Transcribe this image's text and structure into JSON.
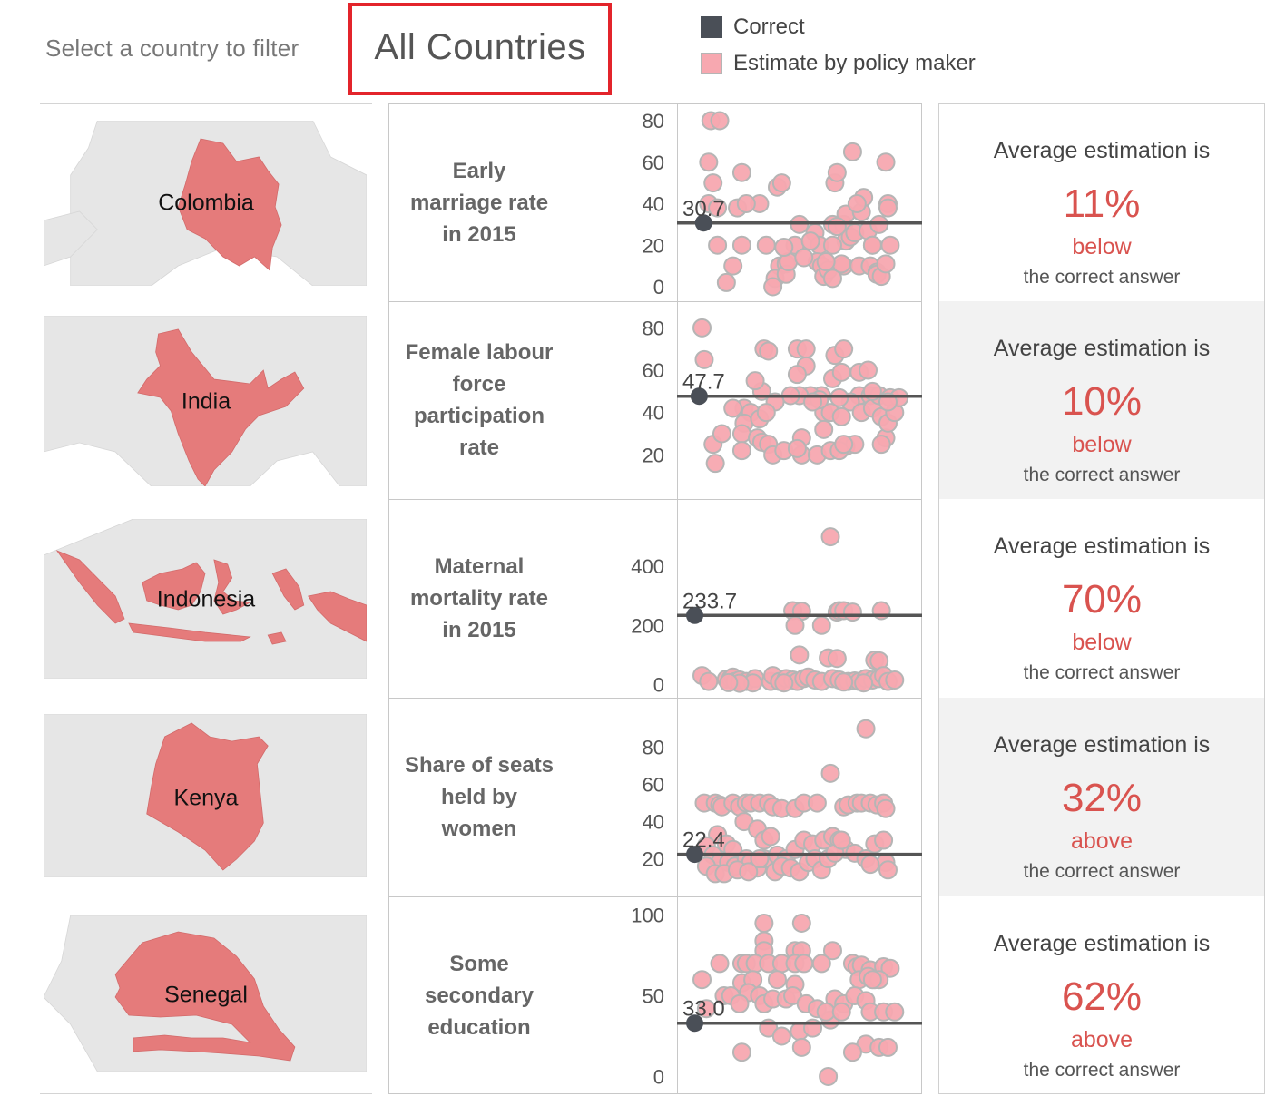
{
  "filter": {
    "label": "Select a country to filter",
    "value": "All Countries"
  },
  "legend": [
    {
      "label": "Correct",
      "color": "#4a4f57"
    },
    {
      "label": "Estimate by policy maker",
      "color": "#f7a8b0"
    }
  ],
  "colors": {
    "correct": "#4a4f57",
    "estimate_fill": "#f7a8b0",
    "estimate_stroke": "#b5b5b5",
    "accent": "#d9534f",
    "map_highlight": "#e57b7b",
    "map_land": "#e6e6e6"
  },
  "rows": [
    {
      "country": "Colombia",
      "indicator": [
        "Early",
        "marriage rate",
        "in 2015"
      ],
      "card": {
        "heading": "Average estimation is",
        "percent": "11%",
        "direction": "below",
        "footer": "the correct answer"
      }
    },
    {
      "country": "India",
      "indicator": [
        "Female labour",
        "force",
        "participation",
        "rate"
      ],
      "card": {
        "heading": "Average estimation is",
        "percent": "10%",
        "direction": "below",
        "footer": "the correct answer"
      }
    },
    {
      "country": "Indonesia",
      "indicator": [
        "Maternal",
        "mortality rate",
        "in 2015"
      ],
      "card": {
        "heading": "Average estimation is",
        "percent": "70%",
        "direction": "below",
        "footer": "the correct answer"
      }
    },
    {
      "country": "Kenya",
      "indicator": [
        "Share of seats",
        "held by",
        "women"
      ],
      "card": {
        "heading": "Average estimation is",
        "percent": "32%",
        "direction": "above",
        "footer": "the correct answer"
      }
    },
    {
      "country": "Senegal",
      "indicator": [
        "Some",
        "secondary",
        "education"
      ],
      "card": {
        "heading": "Average estimation is",
        "percent": "62%",
        "direction": "above",
        "footer": "the correct answer"
      }
    }
  ],
  "chart_data": [
    {
      "type": "scatter",
      "xlabel": "",
      "ylabel": "",
      "ylim": [
        0,
        80
      ],
      "yticks": [
        0,
        20,
        40,
        60,
        80
      ],
      "correct_value": 30.7,
      "correct_label": "30.7",
      "estimates": [
        [
          0.12,
          80
        ],
        [
          0.16,
          80
        ],
        [
          0.11,
          60
        ],
        [
          0.13,
          50
        ],
        [
          0.26,
          55
        ],
        [
          0.42,
          48
        ],
        [
          0.44,
          50
        ],
        [
          0.34,
          40
        ],
        [
          0.11,
          40
        ],
        [
          0.15,
          38
        ],
        [
          0.24,
          38
        ],
        [
          0.28,
          40
        ],
        [
          0.15,
          20
        ],
        [
          0.26,
          20
        ],
        [
          0.37,
          20
        ],
        [
          0.5,
          20
        ],
        [
          0.52,
          30
        ],
        [
          0.59,
          26
        ],
        [
          0.61,
          20
        ],
        [
          0.67,
          30
        ],
        [
          0.72,
          30
        ],
        [
          0.73,
          35
        ],
        [
          0.73,
          22
        ],
        [
          0.75,
          24
        ],
        [
          0.77,
          26
        ],
        [
          0.8,
          36
        ],
        [
          0.81,
          43
        ],
        [
          0.83,
          27
        ],
        [
          0.88,
          30
        ],
        [
          0.91,
          60
        ],
        [
          0.92,
          40
        ],
        [
          0.92,
          38
        ],
        [
          0.93,
          20
        ],
        [
          0.85,
          20
        ],
        [
          0.76,
          65
        ],
        [
          0.68,
          50
        ],
        [
          0.6,
          12
        ],
        [
          0.62,
          10
        ],
        [
          0.63,
          5
        ],
        [
          0.65,
          8
        ],
        [
          0.72,
          10
        ],
        [
          0.79,
          10
        ],
        [
          0.84,
          10
        ],
        [
          0.87,
          7
        ],
        [
          0.85,
          20
        ],
        [
          0.22,
          10
        ],
        [
          0.43,
          10
        ],
        [
          0.46,
          11
        ],
        [
          0.41,
          4
        ],
        [
          0.4,
          0
        ],
        [
          0.46,
          6
        ],
        [
          0.47,
          12
        ],
        [
          0.19,
          2
        ],
        [
          0.57,
          22
        ],
        [
          0.67,
          20
        ],
        [
          0.67,
          4
        ],
        [
          0.71,
          11
        ],
        [
          0.87,
          6
        ],
        [
          0.89,
          5
        ],
        [
          0.91,
          11
        ],
        [
          0.64,
          12
        ],
        [
          0.54,
          14
        ],
        [
          0.45,
          19
        ],
        [
          0.69,
          29
        ],
        [
          0.78,
          40
        ],
        [
          0.69,
          55
        ]
      ]
    },
    {
      "type": "scatter",
      "xlabel": "",
      "ylabel": "",
      "ylim": [
        12,
        84
      ],
      "yticks": [
        20,
        40,
        60,
        80
      ],
      "correct_value": 47.7,
      "correct_label": "47.7",
      "estimates": [
        [
          0.08,
          80
        ],
        [
          0.09,
          65
        ],
        [
          0.36,
          70
        ],
        [
          0.38,
          69
        ],
        [
          0.51,
          70
        ],
        [
          0.55,
          70
        ],
        [
          0.68,
          67
        ],
        [
          0.72,
          70
        ],
        [
          0.55,
          62
        ],
        [
          0.51,
          58
        ],
        [
          0.67,
          56
        ],
        [
          0.71,
          59
        ],
        [
          0.79,
          59
        ],
        [
          0.83,
          60
        ],
        [
          0.79,
          48
        ],
        [
          0.75,
          45
        ],
        [
          0.7,
          47
        ],
        [
          0.62,
          48
        ],
        [
          0.57,
          48
        ],
        [
          0.52,
          48
        ],
        [
          0.48,
          48
        ],
        [
          0.41,
          45
        ],
        [
          0.35,
          50
        ],
        [
          0.32,
          55
        ],
        [
          0.27,
          42
        ],
        [
          0.3,
          40
        ],
        [
          0.22,
          42
        ],
        [
          0.27,
          35
        ],
        [
          0.26,
          30
        ],
        [
          0.34,
          37
        ],
        [
          0.37,
          40
        ],
        [
          0.33,
          28
        ],
        [
          0.35,
          26
        ],
        [
          0.38,
          25
        ],
        [
          0.4,
          20
        ],
        [
          0.53,
          28
        ],
        [
          0.53,
          20
        ],
        [
          0.63,
          40
        ],
        [
          0.63,
          32
        ],
        [
          0.66,
          40
        ],
        [
          0.71,
          38
        ],
        [
          0.73,
          24
        ],
        [
          0.77,
          25
        ],
        [
          0.8,
          40
        ],
        [
          0.84,
          48
        ],
        [
          0.85,
          42
        ],
        [
          0.88,
          48
        ],
        [
          0.89,
          38
        ],
        [
          0.93,
          47
        ],
        [
          0.91,
          28
        ],
        [
          0.89,
          25
        ],
        [
          0.92,
          35
        ],
        [
          0.95,
          40
        ],
        [
          0.97,
          47
        ],
        [
          0.13,
          25
        ],
        [
          0.17,
          30
        ],
        [
          0.14,
          16
        ],
        [
          0.26,
          22
        ],
        [
          0.45,
          22
        ],
        [
          0.51,
          23
        ],
        [
          0.6,
          20
        ],
        [
          0.66,
          22
        ],
        [
          0.7,
          22
        ],
        [
          0.72,
          25
        ],
        [
          0.61,
          46
        ],
        [
          0.58,
          45
        ],
        [
          0.85,
          50
        ],
        [
          0.92,
          45
        ]
      ]
    },
    {
      "type": "scatter",
      "xlabel": "",
      "ylabel": "",
      "ylim": [
        -5,
        505
      ],
      "yticks": [
        0,
        200,
        400
      ],
      "correct_value": 233.7,
      "correct_label": "233.7",
      "estimates": [
        [
          0.66,
          500
        ],
        [
          0.49,
          250
        ],
        [
          0.53,
          248
        ],
        [
          0.69,
          245
        ],
        [
          0.7,
          250
        ],
        [
          0.72,
          250
        ],
        [
          0.76,
          245
        ],
        [
          0.89,
          250
        ],
        [
          0.5,
          200
        ],
        [
          0.62,
          200
        ],
        [
          0.52,
          100
        ],
        [
          0.65,
          90
        ],
        [
          0.69,
          88
        ],
        [
          0.86,
          82
        ],
        [
          0.88,
          80
        ],
        [
          0.08,
          30
        ],
        [
          0.11,
          10
        ],
        [
          0.19,
          18
        ],
        [
          0.21,
          20
        ],
        [
          0.22,
          25
        ],
        [
          0.23,
          10
        ],
        [
          0.25,
          15
        ],
        [
          0.28,
          10
        ],
        [
          0.32,
          20
        ],
        [
          0.39,
          10
        ],
        [
          0.4,
          30
        ],
        [
          0.43,
          10
        ],
        [
          0.46,
          20
        ],
        [
          0.49,
          15
        ],
        [
          0.51,
          10
        ],
        [
          0.54,
          20
        ],
        [
          0.56,
          25
        ],
        [
          0.59,
          15
        ],
        [
          0.62,
          10
        ],
        [
          0.67,
          20
        ],
        [
          0.7,
          15
        ],
        [
          0.74,
          10
        ],
        [
          0.77,
          12
        ],
        [
          0.79,
          10
        ],
        [
          0.82,
          20
        ],
        [
          0.85,
          15
        ],
        [
          0.88,
          20
        ],
        [
          0.9,
          30
        ],
        [
          0.92,
          10
        ],
        [
          0.95,
          15
        ],
        [
          0.81,
          5
        ],
        [
          0.72,
          8
        ],
        [
          0.31,
          5
        ],
        [
          0.45,
          5
        ],
        [
          0.25,
          4
        ],
        [
          0.2,
          6
        ]
      ]
    },
    {
      "type": "scatter",
      "xlabel": "",
      "ylabel": "",
      "ylim": [
        10,
        94
      ],
      "yticks": [
        20,
        40,
        60,
        80
      ],
      "correct_value": 22.4,
      "correct_label": "22.4",
      "estimates": [
        [
          0.82,
          90
        ],
        [
          0.66,
          66
        ],
        [
          0.09,
          50
        ],
        [
          0.14,
          50
        ],
        [
          0.16,
          49
        ],
        [
          0.17,
          48
        ],
        [
          0.22,
          50
        ],
        [
          0.25,
          48
        ],
        [
          0.28,
          50
        ],
        [
          0.3,
          50
        ],
        [
          0.34,
          50
        ],
        [
          0.38,
          50
        ],
        [
          0.4,
          48
        ],
        [
          0.44,
          47
        ],
        [
          0.5,
          47
        ],
        [
          0.54,
          50
        ],
        [
          0.6,
          50
        ],
        [
          0.72,
          48
        ],
        [
          0.74,
          49
        ],
        [
          0.78,
          50
        ],
        [
          0.8,
          50
        ],
        [
          0.84,
          50
        ],
        [
          0.87,
          49
        ],
        [
          0.9,
          50
        ],
        [
          0.91,
          47
        ],
        [
          0.27,
          40
        ],
        [
          0.33,
          36
        ],
        [
          0.36,
          30
        ],
        [
          0.39,
          32
        ],
        [
          0.15,
          33
        ],
        [
          0.19,
          28
        ],
        [
          0.22,
          25
        ],
        [
          0.1,
          27
        ],
        [
          0.13,
          22
        ],
        [
          0.16,
          18
        ],
        [
          0.2,
          18
        ],
        [
          0.23,
          16
        ],
        [
          0.28,
          20
        ],
        [
          0.3,
          18
        ],
        [
          0.33,
          15
        ],
        [
          0.36,
          20
        ],
        [
          0.42,
          22
        ],
        [
          0.46,
          20
        ],
        [
          0.5,
          25
        ],
        [
          0.54,
          30
        ],
        [
          0.58,
          28
        ],
        [
          0.63,
          30
        ],
        [
          0.67,
          32
        ],
        [
          0.7,
          30
        ],
        [
          0.73,
          25
        ],
        [
          0.77,
          23
        ],
        [
          0.82,
          20
        ],
        [
          0.86,
          28
        ],
        [
          0.9,
          30
        ],
        [
          0.91,
          18
        ],
        [
          0.92,
          14
        ],
        [
          0.1,
          16
        ],
        [
          0.14,
          12
        ],
        [
          0.18,
          12
        ],
        [
          0.24,
          14
        ],
        [
          0.29,
          13
        ],
        [
          0.34,
          20
        ],
        [
          0.41,
          13
        ],
        [
          0.44,
          16
        ],
        [
          0.48,
          15
        ],
        [
          0.52,
          13
        ],
        [
          0.56,
          18
        ],
        [
          0.59,
          20
        ],
        [
          0.62,
          14
        ],
        [
          0.65,
          20
        ],
        [
          0.68,
          23
        ],
        [
          0.71,
          30
        ],
        [
          0.84,
          17
        ]
      ]
    },
    {
      "type": "scatter",
      "xlabel": "",
      "ylabel": "",
      "ylim": [
        -2,
        102
      ],
      "yticks": [
        0,
        50,
        100
      ],
      "correct_value": 33.0,
      "correct_label": "33.0",
      "estimates": [
        [
          0.36,
          95
        ],
        [
          0.53,
          95
        ],
        [
          0.36,
          84
        ],
        [
          0.36,
          78
        ],
        [
          0.5,
          78
        ],
        [
          0.53,
          78
        ],
        [
          0.67,
          78
        ],
        [
          0.16,
          70
        ],
        [
          0.26,
          70
        ],
        [
          0.28,
          70
        ],
        [
          0.32,
          70
        ],
        [
          0.38,
          70
        ],
        [
          0.44,
          70
        ],
        [
          0.5,
          70
        ],
        [
          0.54,
          70
        ],
        [
          0.62,
          70
        ],
        [
          0.76,
          70
        ],
        [
          0.78,
          68
        ],
        [
          0.8,
          69
        ],
        [
          0.84,
          66
        ],
        [
          0.9,
          68
        ],
        [
          0.93,
          67
        ],
        [
          0.79,
          60
        ],
        [
          0.86,
          60
        ],
        [
          0.83,
          62
        ],
        [
          0.88,
          60
        ],
        [
          0.08,
          60
        ],
        [
          0.26,
          58
        ],
        [
          0.31,
          60
        ],
        [
          0.42,
          60
        ],
        [
          0.5,
          57
        ],
        [
          0.18,
          50
        ],
        [
          0.21,
          50
        ],
        [
          0.29,
          52
        ],
        [
          0.34,
          50
        ],
        [
          0.36,
          45
        ],
        [
          0.4,
          48
        ],
        [
          0.46,
          48
        ],
        [
          0.49,
          50
        ],
        [
          0.55,
          45
        ],
        [
          0.6,
          42
        ],
        [
          0.68,
          48
        ],
        [
          0.72,
          45
        ],
        [
          0.77,
          50
        ],
        [
          0.82,
          47
        ],
        [
          0.84,
          40
        ],
        [
          0.9,
          40
        ],
        [
          0.95,
          40
        ],
        [
          0.1,
          42
        ],
        [
          0.25,
          45
        ],
        [
          0.38,
          30
        ],
        [
          0.52,
          28
        ],
        [
          0.58,
          30
        ],
        [
          0.66,
          35
        ],
        [
          0.82,
          20
        ],
        [
          0.88,
          18
        ],
        [
          0.92,
          18
        ],
        [
          0.76,
          15
        ],
        [
          0.53,
          18
        ],
        [
          0.26,
          15
        ],
        [
          0.64,
          40
        ],
        [
          0.71,
          40
        ],
        [
          0.85,
          60
        ],
        [
          0.65,
          0
        ],
        [
          0.44,
          25
        ]
      ]
    }
  ]
}
